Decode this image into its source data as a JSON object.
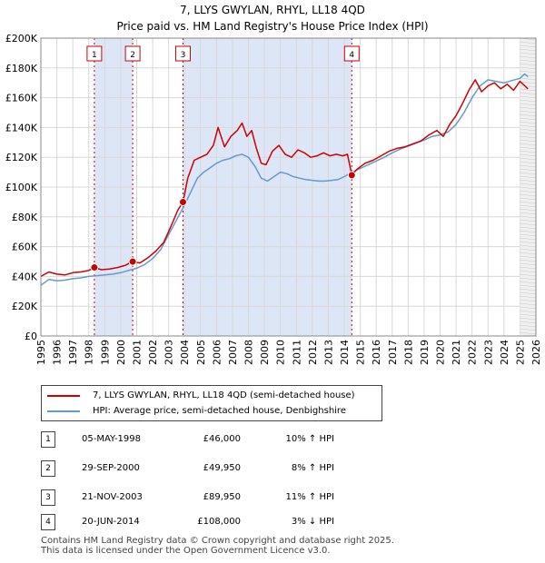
{
  "title_line1": "7, LLYS GWYLAN, RHYL, LL18 4QD",
  "title_line2": "Price paid vs. HM Land Registry's House Price Index (HPI)",
  "chart_data": {
    "type": "line",
    "title": "7, LLYS GWYLAN, RHYL, LL18 4QD - Price paid vs. HM Land Registry's House Price Index (HPI)",
    "xlabel": "",
    "ylabel": "",
    "xlim": [
      1995,
      2026
    ],
    "ylim": [
      0,
      200000
    ],
    "x_ticks": [
      1995,
      1996,
      1997,
      1998,
      1999,
      2000,
      2001,
      2002,
      2003,
      2004,
      2005,
      2006,
      2007,
      2008,
      2009,
      2010,
      2011,
      2012,
      2013,
      2014,
      2015,
      2016,
      2017,
      2018,
      2019,
      2020,
      2021,
      2022,
      2023,
      2024,
      2025,
      2026
    ],
    "y_ticks": [
      0,
      20000,
      40000,
      60000,
      80000,
      100000,
      120000,
      140000,
      160000,
      180000,
      200000
    ],
    "y_tick_labels": [
      "£0",
      "£20K",
      "£40K",
      "£60K",
      "£80K",
      "£100K",
      "£120K",
      "£140K",
      "£160K",
      "£180K",
      "£200K"
    ],
    "series": [
      {
        "name": "7, LLYS GWYLAN, RHYL, LL18 4QD (semi-detached house)",
        "color": "#cc0000",
        "x": [
          1995.0,
          1995.5,
          1996.0,
          1996.5,
          1997.0,
          1997.5,
          1998.0,
          1998.35,
          1998.8,
          1999.3,
          1999.8,
          2000.3,
          2000.75,
          2001.2,
          2001.7,
          2002.2,
          2002.7,
          2003.2,
          2003.6,
          2003.9,
          2004.2,
          2004.6,
          2005.0,
          2005.4,
          2005.8,
          2006.1,
          2006.5,
          2006.9,
          2007.3,
          2007.6,
          2007.9,
          2008.2,
          2008.5,
          2008.8,
          2009.1,
          2009.5,
          2009.9,
          2010.3,
          2010.7,
          2011.1,
          2011.5,
          2011.9,
          2012.3,
          2012.7,
          2013.1,
          2013.5,
          2013.9,
          2014.2,
          2014.47,
          2014.8,
          2015.3,
          2015.8,
          2016.3,
          2016.8,
          2017.3,
          2017.8,
          2018.3,
          2018.8,
          2019.3,
          2019.8,
          2020.2,
          2020.6,
          2021.0,
          2021.4,
          2021.8,
          2022.2,
          2022.6,
          2023.0,
          2023.4,
          2023.8,
          2024.2,
          2024.6,
          2025.0,
          2025.3,
          2025.5
        ],
        "values": [
          40000,
          43000,
          41500,
          41000,
          42500,
          43000,
          44000,
          46000,
          44500,
          45000,
          46000,
          47500,
          49950,
          49000,
          52500,
          57000,
          63000,
          75000,
          85000,
          89950,
          106000,
          118000,
          120000,
          122000,
          128000,
          140000,
          127000,
          134000,
          138000,
          143000,
          134000,
          138000,
          126000,
          116000,
          115000,
          124000,
          128000,
          122000,
          120000,
          125000,
          123000,
          120000,
          121000,
          123000,
          121000,
          122000,
          121000,
          122000,
          108000,
          112000,
          116000,
          118000,
          121000,
          124000,
          126000,
          127000,
          129000,
          131000,
          135000,
          138000,
          134000,
          142000,
          148000,
          156000,
          165000,
          172000,
          164000,
          168000,
          170000,
          166000,
          169000,
          165000,
          171000,
          168000,
          166000
        ]
      },
      {
        "name": "HPI: Average price, semi-detached house, Denbighshire",
        "color": "#6699cc",
        "x": [
          1995.0,
          1995.5,
          1996.0,
          1996.5,
          1997.0,
          1997.5,
          1998.0,
          1998.5,
          1999.0,
          1999.5,
          2000.0,
          2000.5,
          2001.0,
          2001.5,
          2002.0,
          2002.5,
          2003.0,
          2003.5,
          2004.0,
          2004.4,
          2004.8,
          2005.2,
          2005.6,
          2006.0,
          2006.4,
          2006.8,
          2007.2,
          2007.6,
          2008.0,
          2008.4,
          2008.8,
          2009.2,
          2009.6,
          2010.0,
          2010.4,
          2010.8,
          2011.2,
          2011.6,
          2012.0,
          2012.4,
          2012.8,
          2013.2,
          2013.6,
          2014.0,
          2014.5,
          2015.0,
          2015.5,
          2016.0,
          2016.5,
          2017.0,
          2017.5,
          2018.0,
          2018.5,
          2019.0,
          2019.5,
          2020.0,
          2020.5,
          2021.0,
          2021.5,
          2022.0,
          2022.5,
          2023.0,
          2023.5,
          2024.0,
          2024.5,
          2025.0,
          2025.3,
          2025.5
        ],
        "values": [
          34000,
          38000,
          37000,
          37500,
          38500,
          39000,
          40000,
          40500,
          41000,
          41500,
          42500,
          44000,
          45500,
          48000,
          52000,
          58000,
          68000,
          78000,
          88000,
          97000,
          106000,
          110000,
          113000,
          116000,
          118000,
          119000,
          121000,
          122000,
          120000,
          114000,
          106000,
          104000,
          107000,
          110000,
          109000,
          107000,
          106000,
          105000,
          104500,
          104000,
          104000,
          104500,
          105000,
          107000,
          110000,
          112500,
          115000,
          117500,
          120000,
          123000,
          125500,
          127500,
          129500,
          131500,
          134000,
          135000,
          137000,
          142000,
          150000,
          160000,
          168000,
          172000,
          171000,
          170000,
          171500,
          173000,
          176000,
          174000
        ]
      }
    ],
    "sales": [
      {
        "label": "1",
        "x": 1998.35,
        "price": 46000
      },
      {
        "label": "2",
        "x": 2000.75,
        "price": 49950
      },
      {
        "label": "3",
        "x": 2003.9,
        "price": 89950
      },
      {
        "label": "4",
        "x": 2014.47,
        "price": 108000
      }
    ],
    "sale_bands": [
      [
        1998.35,
        2000.75
      ],
      [
        2003.9,
        2014.47
      ]
    ],
    "projection_start": 2025.0
  },
  "legend": {
    "property": "7, LLYS GWYLAN, RHYL, LL18 4QD (semi-detached house)",
    "hpi": "HPI: Average price, semi-detached house, Denbighshire"
  },
  "transactions": [
    {
      "num": "1",
      "date": "05-MAY-1998",
      "price": "£46,000",
      "hpi": "10% ↑ HPI"
    },
    {
      "num": "2",
      "date": "29-SEP-2000",
      "price": "£49,950",
      "hpi": "8% ↑ HPI"
    },
    {
      "num": "3",
      "date": "21-NOV-2003",
      "price": "£89,950",
      "hpi": "11% ↑ HPI"
    },
    {
      "num": "4",
      "date": "20-JUN-2014",
      "price": "£108,000",
      "hpi": "3% ↓ HPI"
    }
  ],
  "footer": {
    "line1": "Contains HM Land Registry data © Crown copyright and database right 2025.",
    "line2": "This data is licensed under the Open Government Licence v3.0."
  }
}
